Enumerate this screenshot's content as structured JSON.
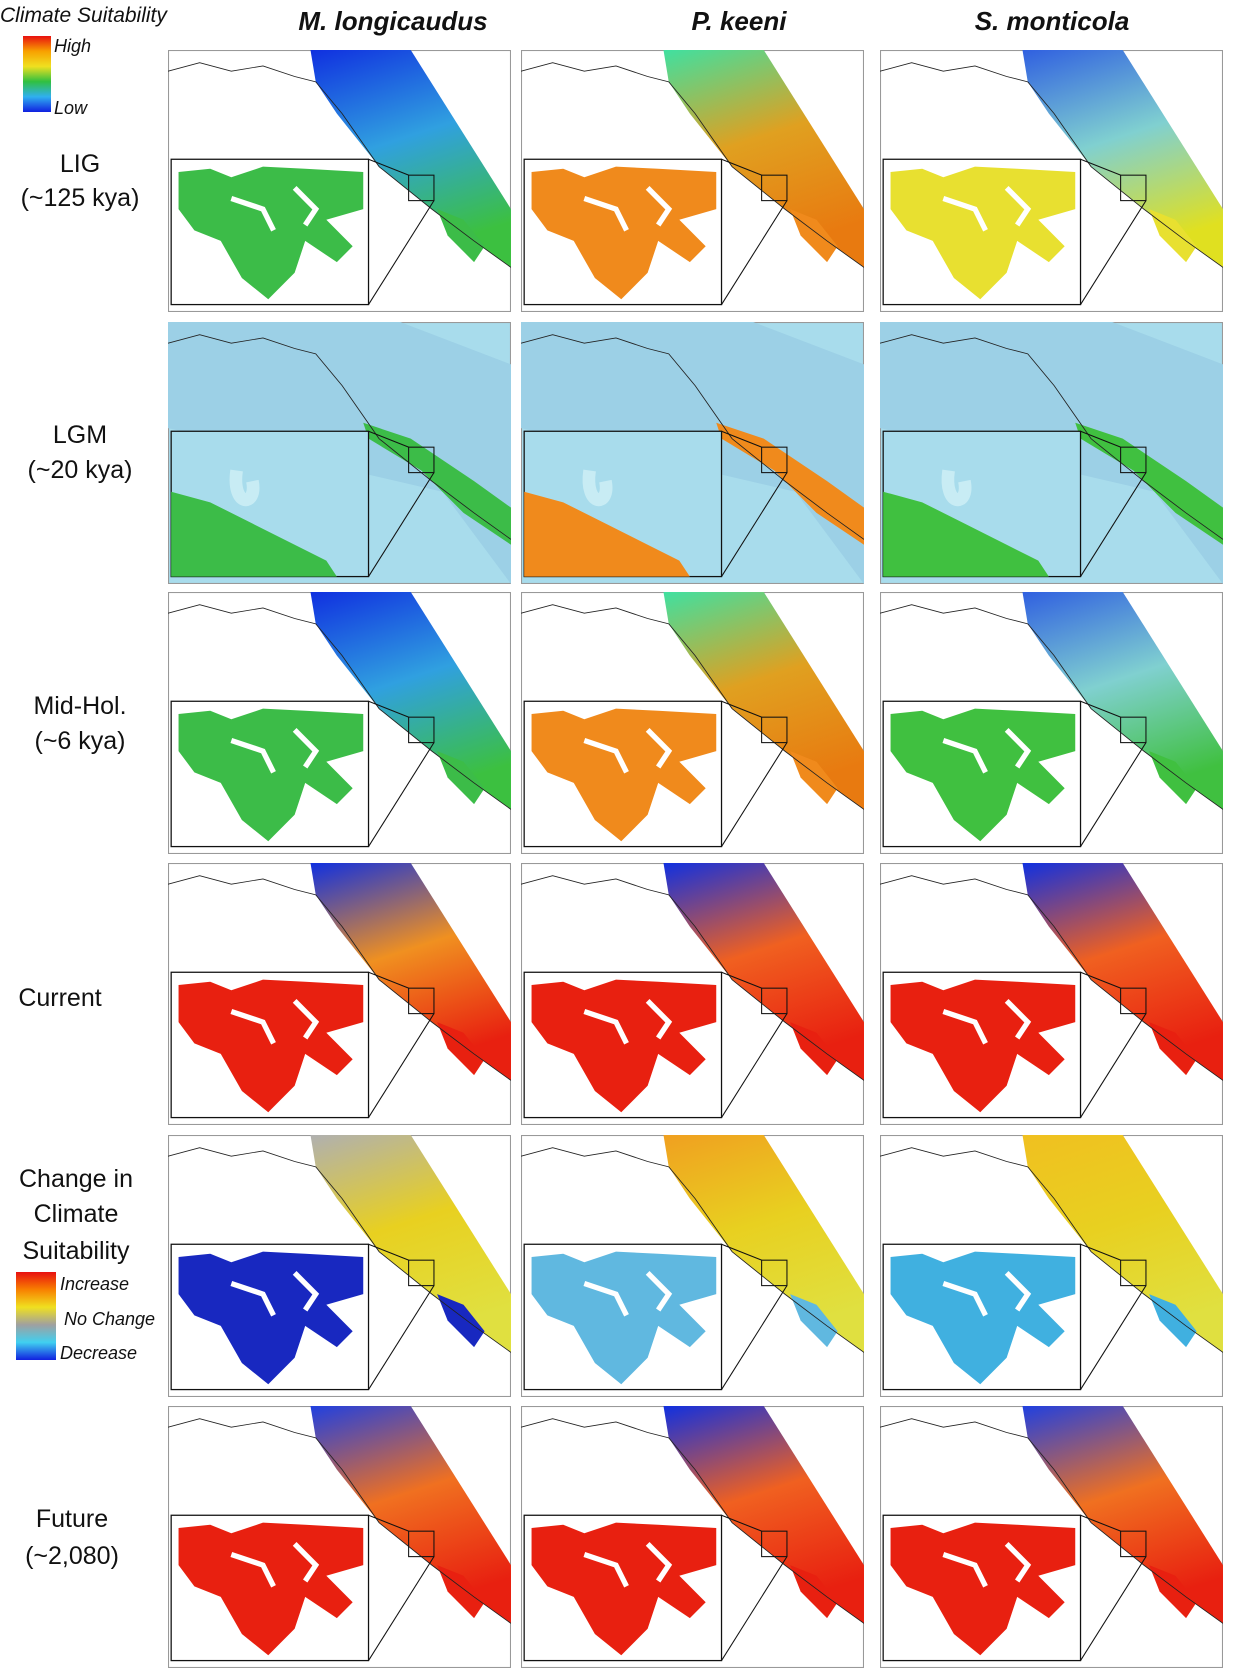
{
  "legend": {
    "title": "Climate Suitability",
    "high": "High",
    "low": "Low"
  },
  "columns": [
    "M. longicaudus",
    "P. keeni",
    "S. monticola"
  ],
  "rows": [
    {
      "label": [
        "LIG",
        "(~125 kya)"
      ]
    },
    {
      "label": [
        "LGM",
        "(~20 kya)"
      ]
    },
    {
      "label": [
        "Mid-Hol.",
        "(~6 kya)"
      ]
    },
    {
      "label": [
        "Current"
      ]
    },
    {
      "label": [
        "Change in",
        "Climate",
        "Suitability"
      ]
    },
    {
      "label": [
        "Future",
        "(~2,080)"
      ]
    }
  ],
  "change_legend": {
    "increase": "Increase",
    "no_change": "No Change",
    "decrease": "Decrease"
  }
}
